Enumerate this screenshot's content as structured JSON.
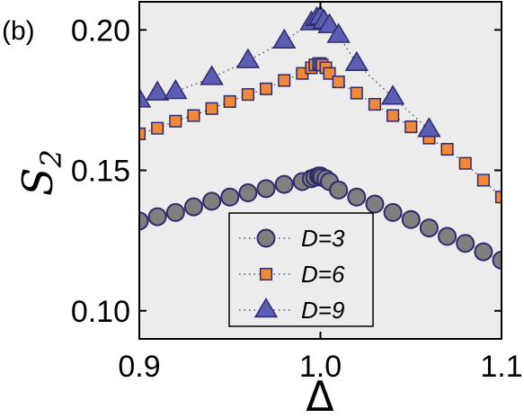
{
  "panel_label": "(b)",
  "colors": {
    "plot_background": "#ececec",
    "axis": "#000000",
    "D3_fill": "#7f7f7f",
    "D6_fill": "#f0893e",
    "D9_fill": "#5e5db4",
    "marker_edge": "#2e2b6a",
    "line": "#3a3a6a"
  },
  "chart_data": {
    "type": "scatter",
    "title": "",
    "xlabel": "Δ",
    "ylabel_main": "S",
    "ylabel_sub": "2",
    "xlim": [
      0.9,
      1.1
    ],
    "ylim": [
      0.09,
      0.21
    ],
    "xticks": [
      0.9,
      1.0,
      1.1
    ],
    "xtick_labels": [
      "0.9",
      "1.0",
      "1.1"
    ],
    "yticks": [
      0.1,
      0.15,
      0.2
    ],
    "ytick_labels": [
      "0.10",
      "0.15",
      "0.20"
    ],
    "grid": false,
    "legend_position": "bottom-center",
    "series": [
      {
        "name": "D=3",
        "marker": "circle",
        "x": [
          0.9,
          0.91,
          0.92,
          0.93,
          0.94,
          0.95,
          0.96,
          0.97,
          0.98,
          0.99,
          0.995,
          0.997,
          0.999,
          1.0,
          1.001,
          1.003,
          1.005,
          1.01,
          1.02,
          1.03,
          1.04,
          1.05,
          1.06,
          1.07,
          1.08,
          1.09,
          1.1
        ],
        "y": [
          0.132,
          0.1335,
          0.135,
          0.137,
          0.139,
          0.1405,
          0.142,
          0.1435,
          0.145,
          0.146,
          0.147,
          0.1475,
          0.148,
          0.148,
          0.1475,
          0.147,
          0.146,
          0.143,
          0.1405,
          0.138,
          0.135,
          0.1325,
          0.1295,
          0.1265,
          0.124,
          0.121,
          0.118
        ]
      },
      {
        "name": "D=6",
        "marker": "square",
        "x": [
          0.9,
          0.91,
          0.92,
          0.93,
          0.94,
          0.95,
          0.96,
          0.97,
          0.98,
          0.99,
          0.995,
          0.997,
          0.999,
          1.0,
          1.001,
          1.003,
          1.005,
          1.01,
          1.02,
          1.03,
          1.04,
          1.05,
          1.06,
          1.07,
          1.08,
          1.09,
          1.1
        ],
        "y": [
          0.163,
          0.165,
          0.1675,
          0.1695,
          0.172,
          0.1745,
          0.177,
          0.179,
          0.182,
          0.1845,
          0.1865,
          0.1875,
          0.188,
          0.188,
          0.1875,
          0.1865,
          0.1845,
          0.1815,
          0.1775,
          0.1735,
          0.1695,
          0.1655,
          0.1615,
          0.1575,
          0.1525,
          0.1465,
          0.1405
        ]
      },
      {
        "name": "D=9",
        "marker": "triangle",
        "x": [
          0.9,
          0.91,
          0.92,
          0.94,
          0.96,
          0.98,
          0.995,
          0.998,
          1.0,
          1.002,
          1.005,
          1.01,
          1.02,
          1.04,
          1.06
        ],
        "y": [
          0.175,
          0.1775,
          0.178,
          0.183,
          0.189,
          0.196,
          0.2025,
          0.204,
          0.2045,
          0.203,
          0.2015,
          0.198,
          0.188,
          0.176,
          0.1645
        ]
      }
    ]
  }
}
